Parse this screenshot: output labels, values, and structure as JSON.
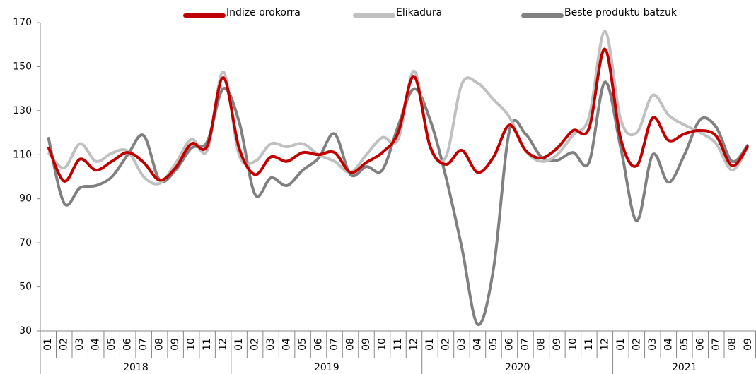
{
  "chart_data": {
    "type": "line",
    "categories": [
      "01",
      "02",
      "03",
      "04",
      "05",
      "06",
      "07",
      "08",
      "09",
      "10",
      "11",
      "12",
      "01",
      "02",
      "03",
      "04",
      "05",
      "06",
      "07",
      "08",
      "09",
      "10",
      "11",
      "12",
      "01",
      "02",
      "03",
      "04",
      "05",
      "06",
      "07",
      "08",
      "09",
      "10",
      "11",
      "12",
      "01",
      "02",
      "03",
      "04",
      "05",
      "06",
      "07",
      "08",
      "09"
    ],
    "years": [
      "2018",
      "2019",
      "2020",
      "2021"
    ],
    "series": [
      {
        "name": "Indize orokorra",
        "color": "#c00000",
        "values": [
          113.6,
          98,
          108,
          103,
          107,
          111,
          106.5,
          98.5,
          104,
          115,
          114,
          145,
          113,
          101,
          109,
          107,
          111,
          110,
          111,
          102,
          106.5,
          111,
          120,
          145.6,
          114,
          105.6,
          112,
          102,
          109,
          123.5,
          112,
          108.5,
          113,
          121,
          122,
          158,
          117,
          105,
          126.7,
          116.5,
          119.5,
          121,
          118.5,
          105,
          114
        ]
      },
      {
        "name": "Elikadura",
        "color": "#c0c0c0",
        "values": [
          111,
          104,
          115,
          107,
          110.7,
          111.6,
          100,
          97,
          106,
          117,
          112,
          147.6,
          110,
          107,
          115,
          113.6,
          115,
          110,
          107,
          102,
          110,
          117.8,
          117,
          148,
          113.6,
          109,
          142,
          142.5,
          135,
          127,
          112,
          107,
          110,
          119,
          127,
          166,
          125.8,
          120,
          137,
          128,
          123.5,
          120,
          115,
          103,
          114
        ]
      },
      {
        "name": "Beste produktu batzuk",
        "color": "#808080",
        "values": [
          118,
          88,
          95,
          96,
          100,
          110,
          118.7,
          98.5,
          103,
          113,
          116,
          140,
          125,
          92,
          99.5,
          96,
          103,
          108.5,
          119.5,
          101,
          104.6,
          103,
          123,
          140,
          126,
          100,
          68,
          33,
          58.5,
          121,
          119.5,
          109,
          107.5,
          111,
          106.5,
          143,
          113,
          80,
          110,
          97.5,
          110,
          126,
          122.5,
          107,
          114.5
        ]
      }
    ],
    "ylim": [
      30,
      170
    ],
    "yticks": [
      30,
      50,
      70,
      90,
      110,
      130,
      150,
      170
    ]
  }
}
